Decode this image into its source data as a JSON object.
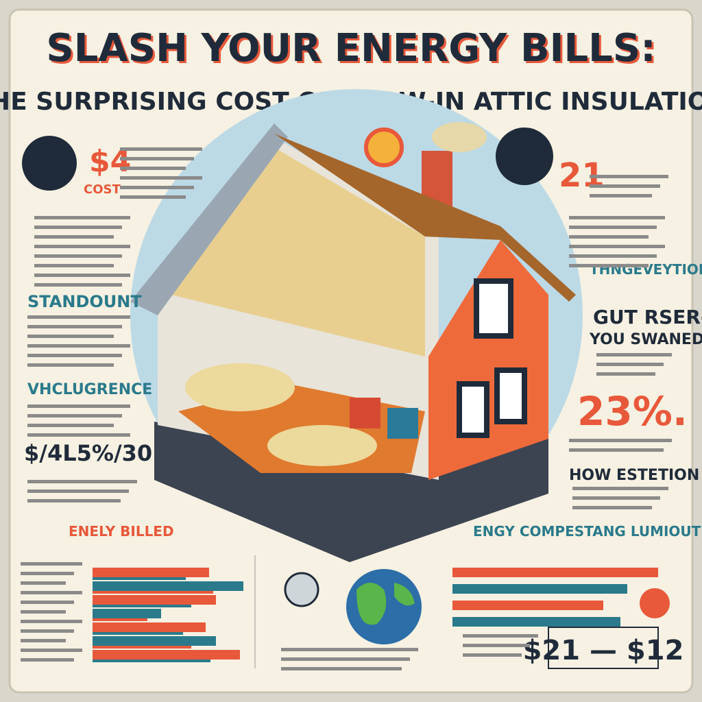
{
  "header": {
    "title": "SLASH YOUR ENERGY BILLS:",
    "subtitle": "THE SURPRISING COST OF BLOW-IN ATTIC INSULATION"
  },
  "left_panel": {
    "figure": "$4",
    "figure_caption": "COST",
    "heading_1": "STANDOUNT",
    "heading_2": "VHCLUGRENCE",
    "stat": "$/4L5%/30"
  },
  "right_panel": {
    "figure": "21",
    "heading_1": "THNGEVEYTIOI",
    "heading_2": "GUT RSER-",
    "heading_3": "YOU SWANED",
    "stat": "23%.",
    "heading_4": "HOW ESTETION"
  },
  "footer": {
    "left_banner": "ENELY BILLED",
    "right_banner": "ENGY COMPESTANG LUMIOUT",
    "price_range": "$21 — $12"
  }
}
